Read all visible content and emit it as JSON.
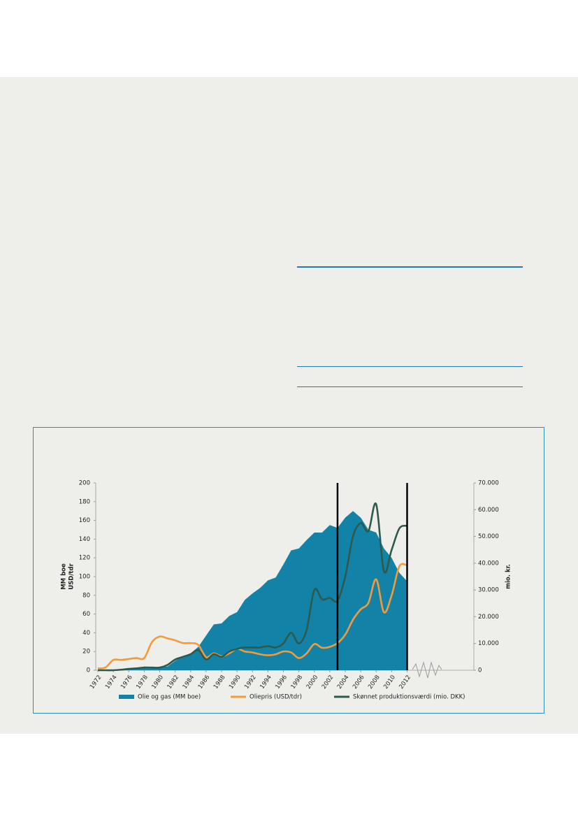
{
  "chart_data": {
    "type": "line",
    "x": [
      1972,
      1973,
      1974,
      1975,
      1976,
      1977,
      1978,
      1979,
      1980,
      1981,
      1982,
      1983,
      1984,
      1985,
      1986,
      1987,
      1988,
      1989,
      1990,
      1991,
      1992,
      1993,
      1994,
      1995,
      1996,
      1997,
      1998,
      1999,
      2000,
      2001,
      2002,
      2003,
      2004,
      2005,
      2006,
      2007,
      2008,
      2009,
      2010,
      2011,
      2012
    ],
    "series": [
      {
        "name": "Olie og gas (MM boe)",
        "type": "area",
        "color": "#1283a6",
        "axis": "y",
        "values": [
          0,
          0,
          0,
          0.5,
          1,
          2,
          4,
          3,
          3,
          4,
          10,
          15,
          18,
          25,
          37,
          49,
          50,
          58,
          62,
          75,
          82,
          88,
          96,
          99,
          113,
          128,
          130,
          139,
          147,
          147,
          155,
          152,
          163,
          170,
          163,
          150,
          147,
          130,
          120,
          104,
          95
        ]
      },
      {
        "name": "Oliepris (USD/tdr)",
        "type": "line",
        "color": "#f39a3c",
        "axis": "y",
        "values": [
          2,
          3,
          11,
          11,
          12,
          13,
          13,
          30,
          36,
          34,
          32,
          29,
          29,
          27,
          14,
          18,
          15,
          18,
          23,
          20,
          19,
          17,
          16,
          17,
          20,
          19,
          13,
          18,
          28,
          24,
          25,
          29,
          38,
          54,
          65,
          72,
          97,
          62,
          80,
          111,
          112
        ]
      },
      {
        "name": "Skønnet produktionsværdi (mio. DKK)",
        "type": "line",
        "color": "#2e5a4e",
        "axis": "y2",
        "values": [
          0,
          0,
          0,
          200,
          500,
          700,
          1000,
          1000,
          1000,
          2000,
          4000,
          5000,
          6000,
          7500,
          4000,
          6000,
          5000,
          7000,
          8000,
          8500,
          8500,
          8500,
          9000,
          8500,
          10000,
          14000,
          10000,
          15000,
          30000,
          26500,
          27000,
          26000,
          35000,
          50000,
          55000,
          52000,
          62000,
          37000,
          45000,
          53000,
          54000
        ]
      }
    ],
    "y_axis_label": [
      "MM boe",
      "USD/tdr"
    ],
    "y2_axis_label": "mio. kr.",
    "xlim": [
      1972,
      2020
    ],
    "xticks": [
      1972,
      1974,
      1976,
      1978,
      1980,
      1982,
      1984,
      1986,
      1988,
      1990,
      1992,
      1994,
      1996,
      1998,
      2000,
      2002,
      2004,
      2006,
      2008,
      2010,
      2012
    ],
    "ylim": [
      0,
      200
    ],
    "yticks": [
      0,
      20,
      40,
      60,
      80,
      100,
      120,
      140,
      160,
      180,
      200
    ],
    "y2lim": [
      0,
      70000
    ],
    "y2ticks": [
      0,
      {
        "value": 10000,
        "label": "10.000"
      },
      {
        "value": 20000,
        "label": "20.000"
      },
      {
        "value": 30000,
        "label": "30.000"
      },
      {
        "value": 40000,
        "label": "40.000"
      },
      {
        "value": 50000,
        "label": "50.000"
      },
      {
        "value": 60000,
        "label": "60.000"
      },
      {
        "value": 70000,
        "label": "70.000"
      }
    ],
    "vertical_lines": [
      2003,
      2012
    ],
    "legend": "bottom"
  }
}
